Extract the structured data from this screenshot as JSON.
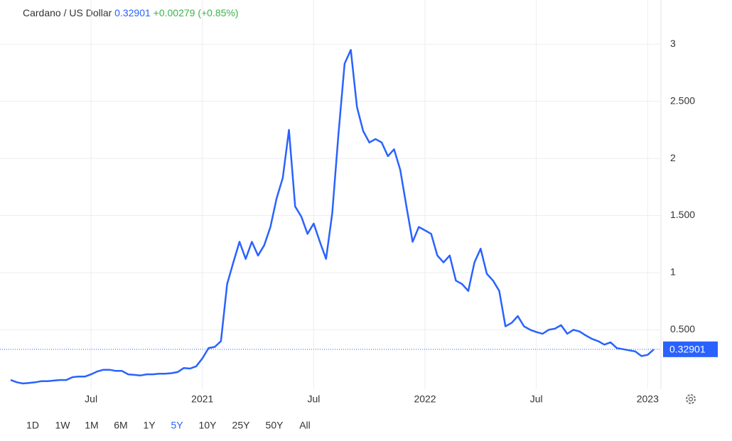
{
  "chart_data": {
    "type": "line",
    "title": "Cardano / US Dollar",
    "price": 0.32901,
    "change": "+0.00279 (+0.85%)",
    "color": "#2962ff",
    "categories": [
      null,
      null,
      null,
      null,
      null,
      null,
      null,
      null,
      null,
      null,
      null,
      null,
      null,
      "Jul",
      null,
      null,
      null,
      null,
      null,
      null,
      null,
      null,
      null,
      null,
      null,
      null,
      null,
      null,
      null,
      null,
      null,
      "2021",
      null,
      null,
      null,
      null,
      null,
      null,
      null,
      null,
      null,
      null,
      null,
      null,
      null,
      null,
      null,
      null,
      null,
      "Jul",
      null,
      null,
      null,
      null,
      null,
      null,
      null,
      null,
      null,
      null,
      null,
      null,
      null,
      null,
      null,
      null,
      null,
      "2022",
      null,
      null,
      null,
      null,
      null,
      null,
      null,
      null,
      null,
      null,
      null,
      null,
      null,
      null,
      null,
      null,
      null,
      "Jul",
      null,
      null,
      null,
      null,
      null,
      null,
      null,
      null,
      null,
      null,
      null,
      null,
      null,
      null,
      null,
      null,
      null,
      "2023",
      null
    ],
    "values": [
      0.06,
      0.04,
      0.03,
      0.035,
      0.04,
      0.05,
      0.05,
      0.055,
      0.06,
      0.06,
      0.085,
      0.09,
      0.09,
      0.11,
      0.135,
      0.15,
      0.15,
      0.14,
      0.14,
      0.11,
      0.105,
      0.1,
      0.11,
      0.11,
      0.115,
      0.115,
      0.12,
      0.13,
      0.165,
      0.16,
      0.18,
      0.25,
      0.34,
      0.35,
      0.4,
      0.9,
      1.09,
      1.27,
      1.12,
      1.27,
      1.15,
      1.24,
      1.4,
      1.65,
      1.83,
      2.25,
      1.58,
      1.49,
      1.34,
      1.43,
      1.27,
      1.12,
      1.52,
      2.21,
      2.83,
      2.95,
      2.45,
      2.24,
      2.14,
      2.17,
      2.14,
      2.02,
      2.08,
      1.9,
      1.58,
      1.27,
      1.4,
      1.37,
      1.34,
      1.15,
      1.09,
      1.15,
      0.93,
      0.9,
      0.84,
      1.09,
      1.21,
      0.99,
      0.93,
      0.84,
      0.53,
      0.56,
      0.62,
      0.53,
      0.5,
      0.48,
      0.465,
      0.5,
      0.51,
      0.54,
      0.465,
      0.5,
      0.485,
      0.45,
      0.42,
      0.4,
      0.37,
      0.39,
      0.34,
      0.33,
      0.32,
      0.31,
      0.27,
      0.28,
      0.32901
    ],
    "ylim": [
      -0.02,
      3.3
    ],
    "yticks": [
      {
        "value": 0.5,
        "label": "0.500"
      },
      1,
      {
        "value": 1.5,
        "label": "1.500"
      },
      2,
      {
        "value": 2.5,
        "label": "2.500"
      },
      3
    ],
    "grid": true,
    "ranges": [
      "1D",
      "1W",
      "1M",
      "6M",
      "1Y",
      "5Y",
      "10Y",
      "25Y",
      "50Y",
      "All"
    ],
    "active_range": 5
  }
}
